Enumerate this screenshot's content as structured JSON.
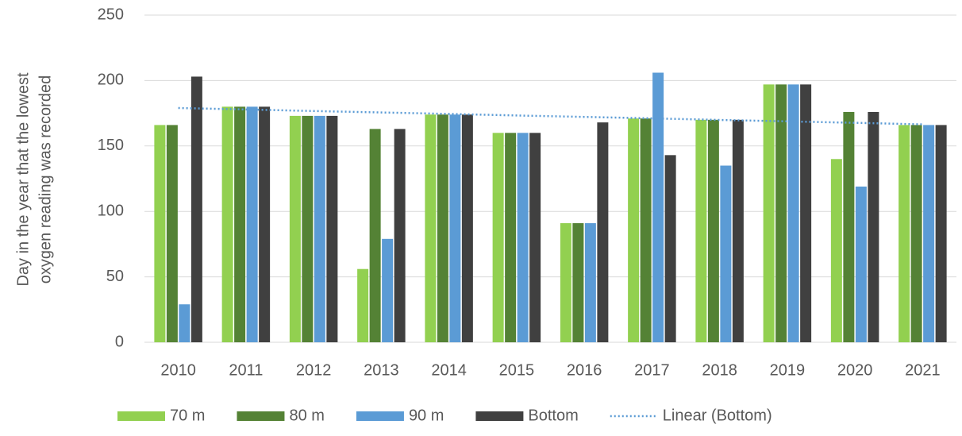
{
  "chart_data": {
    "type": "bar",
    "ylabel": [
      "Day in the year that the lowest",
      "oxygen reading was recorded"
    ],
    "categories": [
      "2010",
      "2011",
      "2012",
      "2013",
      "2014",
      "2015",
      "2016",
      "2017",
      "2018",
      "2019",
      "2020",
      "2021"
    ],
    "series": [
      {
        "name": "70 m",
        "color": "#92d050",
        "values": [
          166,
          180,
          173,
          56,
          174,
          160,
          91,
          171,
          170,
          197,
          140,
          166
        ]
      },
      {
        "name": "80 m",
        "color": "#548235",
        "values": [
          166,
          180,
          173,
          163,
          174,
          160,
          91,
          171,
          170,
          197,
          176,
          166
        ]
      },
      {
        "name": "90 m",
        "color": "#5b9bd5",
        "values": [
          29,
          180,
          173,
          79,
          174,
          160,
          91,
          206,
          135,
          197,
          119,
          166
        ]
      },
      {
        "name": "Bottom",
        "color": "#404040",
        "values": [
          203,
          180,
          173,
          163,
          174,
          160,
          168,
          143,
          170,
          197,
          176,
          166
        ]
      },
      {
        "name": "Linear (Bottom)",
        "color": "#5b9bd5",
        "type": "dotted-line",
        "values": [
          179.0,
          177.9,
          176.7,
          175.6,
          174.5,
          173.3,
          172.2,
          171.1,
          169.9,
          168.8,
          167.7,
          166.5
        ]
      }
    ],
    "ylim": [
      0,
      250
    ],
    "yticks": [
      0,
      50,
      100,
      150,
      200,
      250
    ],
    "grid": true,
    "legend": "bottom"
  }
}
